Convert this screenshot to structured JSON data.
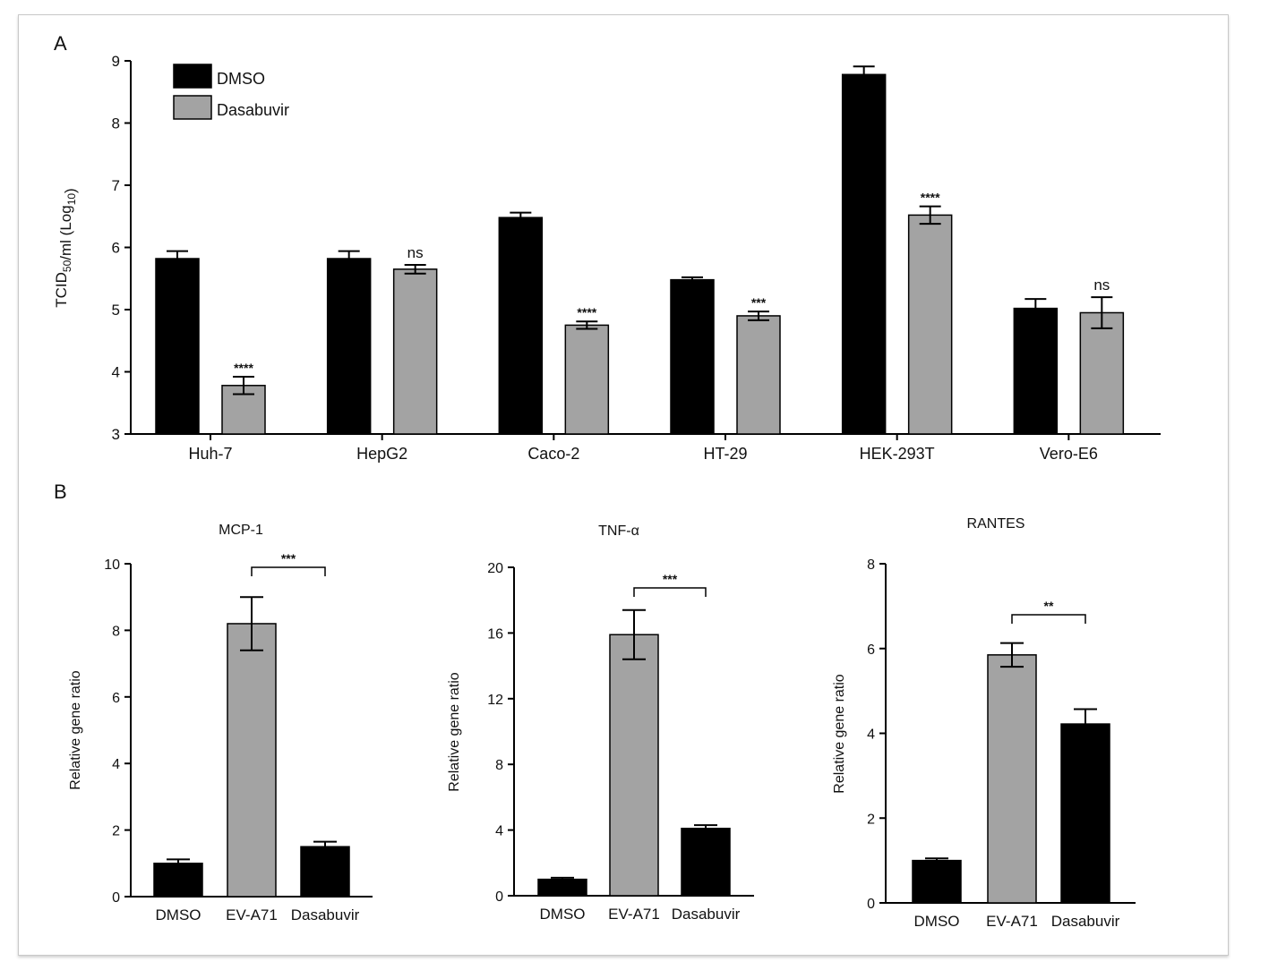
{
  "colors": {
    "dmso": "#000000",
    "dasabuvir": "#a3a3a3",
    "evA71": "#a3a3a3"
  },
  "chart_data": [
    {
      "panel": "A",
      "type": "bar",
      "ylabel_prefix": "TCID",
      "ylabel_sub": "50",
      "ylabel_mid": "/ml (Log",
      "ylabel_sub2": "10",
      "ylabel_end": ")",
      "ylim": [
        3,
        9
      ],
      "yticks": [
        "3",
        "4",
        "5",
        "6",
        "7",
        "8",
        "9"
      ],
      "categories": [
        "Huh-7",
        "HepG2",
        "Caco-2",
        "HT-29",
        "HEK-293T",
        "Vero-E6"
      ],
      "legend_position": "top-left",
      "series": [
        {
          "name": "DMSO",
          "values": [
            5.82,
            5.82,
            6.48,
            5.48,
            8.78,
            5.02
          ],
          "errors": [
            0.12,
            0.12,
            0.08,
            0.04,
            0.13,
            0.15
          ]
        },
        {
          "name": "Dasabuvir",
          "values": [
            3.78,
            5.65,
            4.75,
            4.9,
            6.52,
            4.95
          ],
          "errors": [
            0.14,
            0.07,
            0.06,
            0.07,
            0.14,
            0.25
          ]
        }
      ],
      "significance": [
        "****",
        "ns",
        "****",
        "***",
        "****",
        "ns"
      ]
    },
    {
      "panel": "B",
      "type": "bar",
      "title": "MCP-1",
      "ylabel": "Relative gene ratio",
      "ylim": [
        0,
        10
      ],
      "yticks": [
        "0",
        "2",
        "4",
        "6",
        "8",
        "10"
      ],
      "categories": [
        "DMSO",
        "EV-A71",
        "Dasabuvir"
      ],
      "values": [
        1.0,
        8.2,
        1.5
      ],
      "errors": [
        0.12,
        0.8,
        0.15
      ],
      "bracket": {
        "from": 1,
        "to": 2,
        "label": "***"
      }
    },
    {
      "type": "bar",
      "title": "TNF-α",
      "ylabel": "Relative gene ratio",
      "ylim": [
        0,
        20
      ],
      "yticks": [
        "0",
        "4",
        "8",
        "12",
        "16",
        "20"
      ],
      "categories": [
        "DMSO",
        "EV-A71",
        "Dasabuvir"
      ],
      "values": [
        1.0,
        15.9,
        4.1
      ],
      "errors": [
        0.1,
        1.5,
        0.2
      ],
      "bracket": {
        "from": 1,
        "to": 2,
        "label": "***"
      }
    },
    {
      "type": "bar",
      "title": "RANTES",
      "ylabel": "Relative gene ratio",
      "ylim": [
        0,
        8
      ],
      "yticks": [
        "0",
        "2",
        "4",
        "6",
        "8"
      ],
      "categories": [
        "DMSO",
        "EV-A71",
        "Dasabuvir"
      ],
      "values": [
        1.0,
        5.85,
        4.22
      ],
      "errors": [
        0.05,
        0.28,
        0.35
      ],
      "bracket": {
        "from": 1,
        "to": 2,
        "label": "**"
      }
    }
  ]
}
